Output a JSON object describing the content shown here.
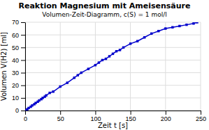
{
  "chart_data": {
    "type": "line",
    "title": "Reaktion Magnesium mit Ameisensäure",
    "subtitle": "Volumen-Zeit-Diagramm, c(S) = 1 mol/l",
    "x_label": "Zeit t [s]",
    "y_label": "Volumen V(H2) [ml]",
    "x": [
      0,
      3,
      5,
      8,
      10,
      13,
      15,
      18,
      20,
      23,
      25,
      28,
      30,
      35,
      40,
      50,
      60,
      70,
      75,
      80,
      90,
      100,
      105,
      110,
      115,
      120,
      125,
      130,
      135,
      140,
      150,
      160,
      170,
      180,
      190,
      200,
      210,
      220,
      230,
      240,
      245
    ],
    "values": [
      0,
      1,
      2,
      3,
      4,
      5,
      6,
      7,
      8,
      9,
      10,
      11,
      12,
      14,
      15,
      19,
      22,
      26,
      28,
      30,
      33,
      36,
      38,
      40,
      41,
      43,
      45,
      47,
      48,
      50,
      53,
      55,
      58,
      61,
      63,
      65,
      66,
      67,
      68,
      69,
      70
    ],
    "color": "#0000cc",
    "marker": "square",
    "xlim": [
      0,
      250
    ],
    "ylim": [
      0,
      70
    ],
    "xticks": [
      0,
      50,
      100,
      150,
      200,
      250
    ],
    "yticks": [
      0,
      10,
      20,
      30,
      40,
      50,
      60,
      70
    ],
    "grid": true
  }
}
